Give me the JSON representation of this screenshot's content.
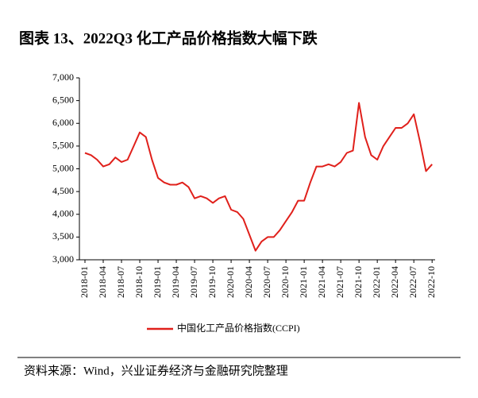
{
  "chart_data": {
    "type": "line",
    "title": "图表 13、2022Q3 化工产品价格指数大幅下跌",
    "source": "资料来源：Wind，兴业证券经济与金融研究院整理",
    "x": [
      "2018-01",
      "2018-02",
      "2018-03",
      "2018-04",
      "2018-05",
      "2018-06",
      "2018-07",
      "2018-08",
      "2018-09",
      "2018-10",
      "2018-11",
      "2018-12",
      "2019-01",
      "2019-02",
      "2019-03",
      "2019-04",
      "2019-05",
      "2019-06",
      "2019-07",
      "2019-08",
      "2019-09",
      "2019-10",
      "2019-11",
      "2019-12",
      "2020-01",
      "2020-02",
      "2020-03",
      "2020-04",
      "2020-05",
      "2020-06",
      "2020-07",
      "2020-08",
      "2020-09",
      "2020-10",
      "2020-11",
      "2020-12",
      "2021-01",
      "2021-02",
      "2021-03",
      "2021-04",
      "2021-05",
      "2021-06",
      "2021-07",
      "2021-08",
      "2021-09",
      "2021-10",
      "2021-11",
      "2021-12",
      "2022-01",
      "2022-02",
      "2022-03",
      "2022-04",
      "2022-05",
      "2022-06",
      "2022-07",
      "2022-08",
      "2022-09",
      "2022-10"
    ],
    "series": [
      {
        "name": "中国化工产品价格指数(CCPI)",
        "color": "#e0201b",
        "values": [
          5350,
          5300,
          5200,
          5050,
          5100,
          5250,
          5150,
          5200,
          5500,
          5800,
          5700,
          5200,
          4800,
          4700,
          4650,
          4650,
          4700,
          4600,
          4350,
          4400,
          4350,
          4250,
          4350,
          4400,
          4100,
          4050,
          3900,
          3550,
          3200,
          3400,
          3500,
          3500,
          3650,
          3850,
          4050,
          4300,
          4300,
          4700,
          5050,
          5050,
          5100,
          5050,
          5150,
          5350,
          5400,
          6450,
          5700,
          5300,
          5200,
          5500,
          5700,
          5900,
          5900,
          6000,
          6200,
          5600,
          4950,
          5100
        ]
      }
    ],
    "xticks": [
      "2018-01",
      "2018-04",
      "2018-07",
      "2018-10",
      "2019-01",
      "2019-04",
      "2019-07",
      "2019-10",
      "2020-01",
      "2020-04",
      "2020-07",
      "2020-10",
      "2021-01",
      "2021-04",
      "2021-07",
      "2021-10",
      "2022-01",
      "2022-04",
      "2022-07",
      "2022-10"
    ],
    "ylim": [
      3000,
      7000
    ],
    "yticks": [
      {
        "value": 3000,
        "label": "3,000"
      },
      {
        "value": 3500,
        "label": "3,500"
      },
      {
        "value": 4000,
        "label": "4,000"
      },
      {
        "value": 4500,
        "label": "4,500"
      },
      {
        "value": 5000,
        "label": "5,000"
      },
      {
        "value": 5500,
        "label": "5,500"
      },
      {
        "value": 6000,
        "label": "6,000"
      },
      {
        "value": 6500,
        "label": "6,500"
      },
      {
        "value": 7000,
        "label": "7,000"
      }
    ],
    "grid": false,
    "legend": "bottom"
  }
}
